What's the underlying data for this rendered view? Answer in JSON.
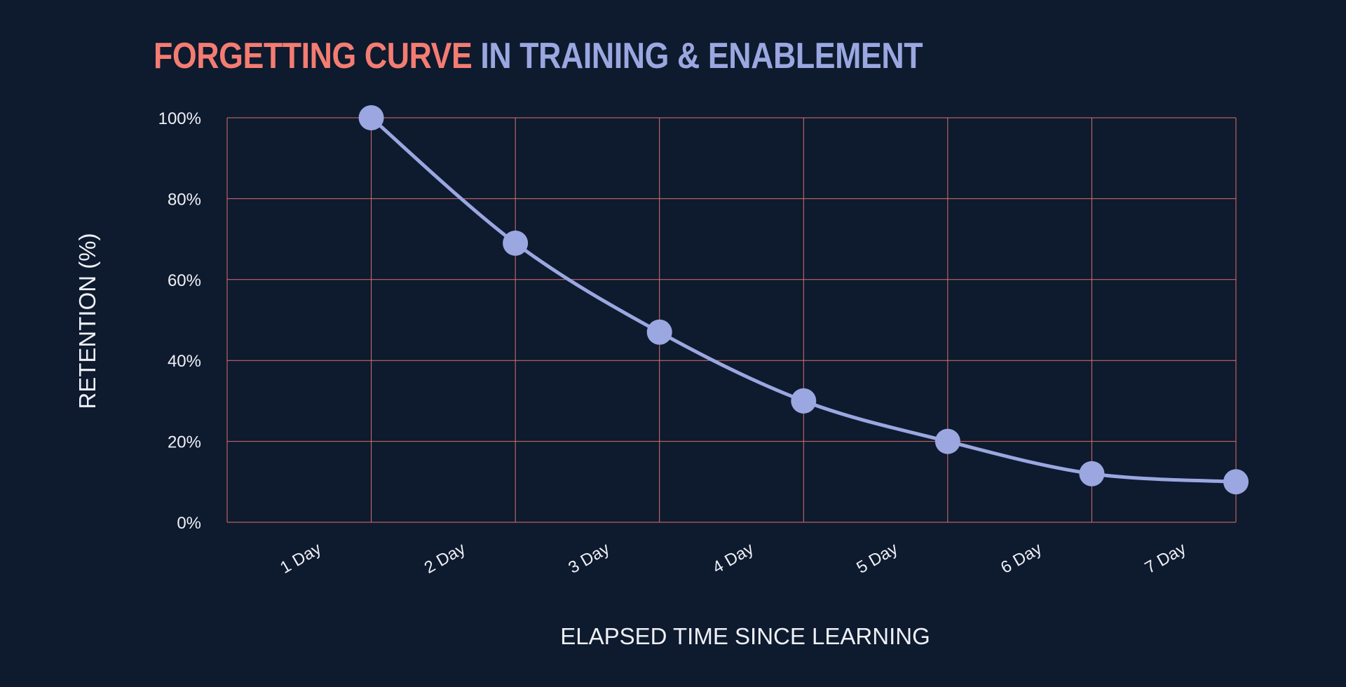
{
  "colors": {
    "background": "#0e1a2e",
    "title_accent": "#f47c72",
    "title_main": "#9aa7e0",
    "line": "#9aa7e0",
    "grid": "#d9726b",
    "text": "#eef0f6"
  },
  "title": {
    "part1": "FORGETTING CURVE",
    "part2": "IN TRAINING & ENABLEMENT"
  },
  "chart_data": {
    "type": "line",
    "title": "FORGETTING CURVE IN TRAINING & ENABLEMENT",
    "xlabel": "ELAPSED TIME SINCE LEARNING",
    "ylabel": "RETENTION (%)",
    "x_tick_labels": [
      "1 Day",
      "2 Day",
      "3 Day",
      "4 Day",
      "5 Day",
      "6 Day",
      "7 Day"
    ],
    "y_tick_labels": [
      "100%",
      "80%",
      "60%",
      "40%",
      "20%",
      "0%"
    ],
    "ylim": [
      0,
      100
    ],
    "grid": true,
    "series": [
      {
        "x": [
          1,
          2,
          3,
          4,
          5,
          6,
          7
        ],
        "values": [
          100,
          69,
          47,
          30,
          20,
          12,
          10
        ]
      }
    ]
  }
}
